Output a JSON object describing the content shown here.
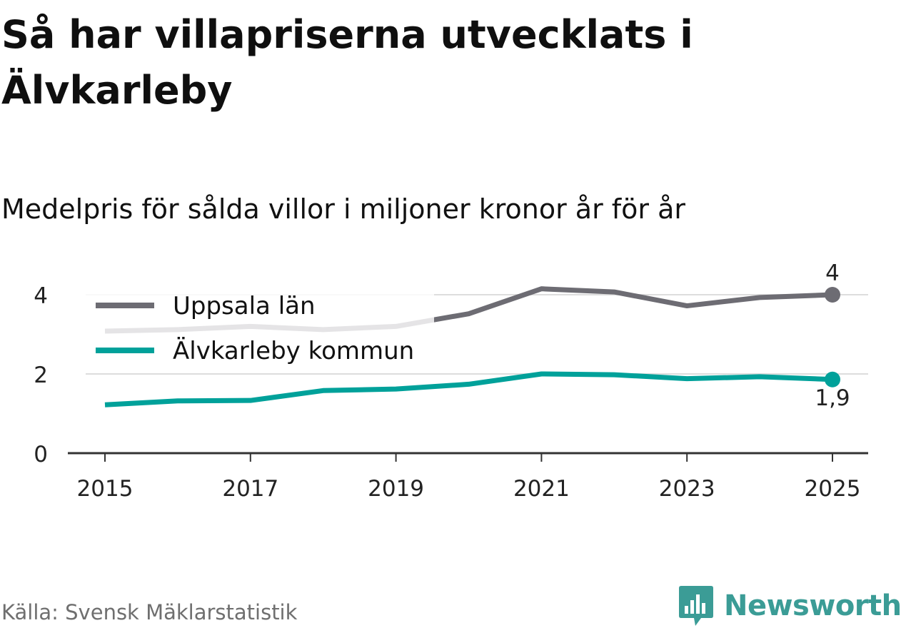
{
  "header": {
    "title": "Så har villapriserna utvecklats i Älvkarleby",
    "subtitle": "Medelpris för sålda villor i miljoner kronor år för år"
  },
  "footer": {
    "source": "Källa: Svensk Mäklarstatistik",
    "brand": "Newsworthy"
  },
  "colors": {
    "uppsala": "#6d6c73",
    "alvkarleby": "#00a19a",
    "grid": "#dddddd",
    "axis": "#333333",
    "legend_bg": "#ffffff",
    "brand": "#3b9c96"
  },
  "chart_data": {
    "type": "line",
    "title": "Så har villapriserna utvecklats i Älvkarleby",
    "subtitle": "Medelpris för sålda villor i miljoner kronor år för år",
    "xlabel": "",
    "ylabel": "",
    "x": [
      2015,
      2016,
      2017,
      2018,
      2019,
      2020,
      2021,
      2022,
      2023,
      2024,
      2025
    ],
    "xticks": [
      "2015",
      "2017",
      "2019",
      "2021",
      "2023",
      "2025"
    ],
    "yticks": [
      "0",
      "2",
      "4"
    ],
    "ylim": [
      0,
      4
    ],
    "xlim": [
      2015,
      2025
    ],
    "grid": true,
    "legend_position": "top-left",
    "series": [
      {
        "name": "Uppsala län",
        "values": [
          3.08,
          3.12,
          3.2,
          3.12,
          3.2,
          3.52,
          4.15,
          4.07,
          3.72,
          3.93,
          4.0
        ],
        "end_label": "4",
        "color": "#6d6c73"
      },
      {
        "name": "Älvkarleby kommun",
        "values": [
          1.22,
          1.32,
          1.33,
          1.58,
          1.62,
          1.74,
          2.0,
          1.98,
          1.88,
          1.93,
          1.86
        ],
        "end_label": "1,9",
        "color": "#00a19a"
      }
    ]
  }
}
